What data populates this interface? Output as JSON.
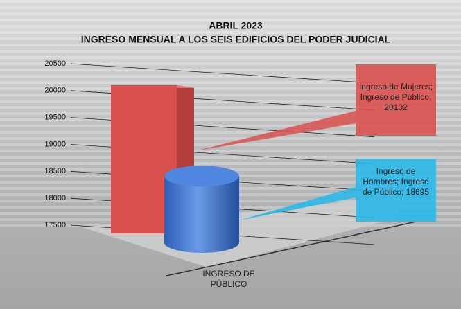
{
  "chart_data": {
    "type": "bar3d",
    "title": "ABRIL 2023",
    "subtitle": "INGRESO MENSUAL A LOS SEIS EDIFICIOS DEL PODER JUDICIAL",
    "categories": [
      "INGRESO DE PÚBLICO"
    ],
    "series": [
      {
        "color": "#d9514f",
        "values": [
          20102
        ],
        "value_labels": [
          "Ingreso de Mujeres; Ingreso de Público; 20102"
        ]
      },
      {
        "color": "#3f78d8",
        "values": [
          18695
        ],
        "value_labels": [
          "Ingreso de Hombres; Ingreso de Público; 18695"
        ]
      }
    ],
    "ylim": [
      17500,
      20500
    ],
    "yticks": [
      17500,
      18000,
      18500,
      19000,
      19500,
      20000,
      20500
    ],
    "grid": true
  }
}
